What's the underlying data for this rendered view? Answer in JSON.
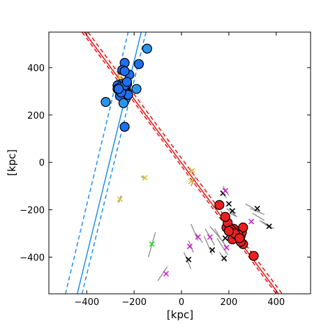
{
  "chart_data": {
    "type": "scatter",
    "xlabel": "[kpc]",
    "ylabel": "[kpc]",
    "xlim": [
      -560,
      545
    ],
    "ylim": [
      -555,
      550
    ],
    "xticks": [
      -400,
      -200,
      0,
      200,
      400
    ],
    "yticks": [
      400,
      200,
      0,
      -200,
      -400
    ],
    "grid": false,
    "colors": {
      "blue_line": "#1f8fef",
      "blue_fill": "#1f6ff0",
      "blue_fill_light": "#2a95f0",
      "red_line": "#e81010",
      "red_fill": "#e82020",
      "segment": "#8c8c8c",
      "black_marker": "#000000",
      "magenta_marker": "#cc22cc",
      "yellow_marker": "#d4c431",
      "green_marker": "#22dd22"
    },
    "lines": [
      {
        "color": "blue",
        "style": "solid",
        "x": [
          -440,
          -170
        ],
        "y": [
          -555,
          550
        ]
      },
      {
        "color": "blue",
        "style": "dashed",
        "x": [
          -490,
          -225
        ],
        "y": [
          -555,
          550
        ]
      },
      {
        "color": "blue",
        "style": "dashed",
        "x": [
          -420,
          -150
        ],
        "y": [
          -555,
          550
        ]
      },
      {
        "color": "red",
        "style": "solid",
        "x": [
          -410,
          410
        ],
        "y": [
          550,
          -555
        ]
      },
      {
        "color": "red",
        "style": "dashed",
        "x": [
          -420,
          400
        ],
        "y": [
          550,
          -555
        ]
      },
      {
        "color": "red",
        "style": "dashed",
        "x": [
          -395,
          425
        ],
        "y": [
          550,
          -555
        ]
      }
    ],
    "blue_points": {
      "x": [
        -145,
        -180,
        -240,
        -250,
        -255,
        -220,
        -235,
        -250,
        -270,
        -255,
        -240,
        -230,
        -245,
        -260,
        -235,
        -225,
        -260,
        -270,
        -245,
        -230,
        -255,
        -240,
        -190,
        -320,
        -240,
        -240,
        -230,
        -255,
        -265
      ],
      "y": [
        480,
        415,
        420,
        390,
        330,
        370,
        310,
        300,
        325,
        320,
        315,
        290,
        280,
        300,
        270,
        285,
        280,
        310,
        250,
        330,
        305,
        325,
        310,
        255,
        150,
        385,
        340,
        295,
        310
      ],
      "light": [
        true,
        false,
        false,
        false,
        false,
        false,
        false,
        false,
        false,
        false,
        false,
        false,
        false,
        false,
        true,
        false,
        false,
        false,
        true,
        false,
        false,
        false,
        true,
        true,
        false,
        false,
        false,
        false,
        false
      ]
    },
    "red_points": {
      "x": [
        305,
        260,
        250,
        215,
        230,
        235,
        250,
        220,
        190,
        195,
        185,
        160,
        255,
        260,
        240,
        210,
        225,
        200,
        245
      ],
      "y": [
        -395,
        -345,
        -335,
        -325,
        -305,
        -295,
        -310,
        -280,
        -275,
        -255,
        -230,
        -180,
        -295,
        -275,
        -305,
        -285,
        -300,
        -290,
        -320
      ]
    },
    "markers": [
      {
        "color": "black",
        "x": [
          320,
          370,
          180,
          130,
          175,
          30,
          240,
          200,
          215,
          185
        ],
        "y": [
          -195,
          -270,
          -405,
          -370,
          -130,
          -410,
          -290,
          -175,
          -205,
          -320
        ]
      },
      {
        "color": "magenta",
        "x": [
          295,
          190,
          120,
          70,
          35,
          -65,
          185,
          245
        ],
        "y": [
          -250,
          -360,
          -315,
          -315,
          -355,
          -470,
          -120,
          -280
        ]
      },
      {
        "color": "yellow",
        "x": [
          -155,
          -260,
          40,
          45,
          265,
          -260
        ],
        "y": [
          -65,
          -155,
          -80,
          -35,
          -275,
          360
        ]
      },
      {
        "color": "green",
        "x": [
          -125
        ],
        "y": [
          -345
        ]
      }
    ],
    "segments": [
      [
        [
          -110,
          -140
        ],
        [
          -295,
          -400
        ]
      ],
      [
        [
          -100,
          -60
        ],
        [
          -500,
          -440
        ]
      ],
      [
        [
          -170,
          -150
        ],
        [
          -60,
          -70
        ]
      ],
      [
        [
          -265,
          -255
        ],
        [
          -170,
          -140
        ]
      ],
      [
        [
          40,
          60
        ],
        [
          -100,
          -60
        ]
      ],
      [
        [
          30,
          50
        ],
        [
          -40,
          -30
        ]
      ],
      [
        [
          10,
          40
        ],
        [
          -380,
          -450
        ]
      ],
      [
        [
          30,
          50
        ],
        [
          -330,
          -380
        ]
      ],
      [
        [
          60,
          90
        ],
        [
          -300,
          -340
        ]
      ],
      [
        [
          40,
          70
        ],
        [
          -260,
          -330
        ]
      ],
      [
        [
          100,
          140
        ],
        [
          -280,
          -350
        ]
      ],
      [
        [
          95,
          130
        ],
        [
          -310,
          -390
        ]
      ],
      [
        [
          140,
          170
        ],
        [
          -280,
          -330
        ]
      ],
      [
        [
          120,
          180
        ],
        [
          -270,
          -340
        ]
      ],
      [
        [
          160,
          190
        ],
        [
          -380,
          -420
        ]
      ],
      [
        [
          150,
          195
        ],
        [
          -320,
          -390
        ]
      ],
      [
        [
          170,
          200
        ],
        [
          -330,
          -370
        ]
      ],
      [
        [
          175,
          200
        ],
        [
          -100,
          -140
        ]
      ],
      [
        [
          165,
          190
        ],
        [
          -120,
          -150
        ]
      ],
      [
        [
          270,
          330
        ],
        [
          -175,
          -210
        ]
      ],
      [
        [
          290,
          350
        ],
        [
          -195,
          -220
        ]
      ],
      [
        [
          300,
          350
        ],
        [
          -215,
          -245
        ]
      ],
      [
        [
          330,
          380
        ],
        [
          -245,
          -280
        ]
      ],
      [
        [
          340,
          390
        ],
        [
          -250,
          -280
        ]
      ],
      [
        [
          190,
          230
        ],
        [
          -195,
          -225
        ]
      ],
      [
        [
          200,
          230
        ],
        [
          -195,
          -215
        ]
      ],
      [
        [
          205,
          235
        ],
        [
          -215,
          -230
        ]
      ]
    ]
  }
}
